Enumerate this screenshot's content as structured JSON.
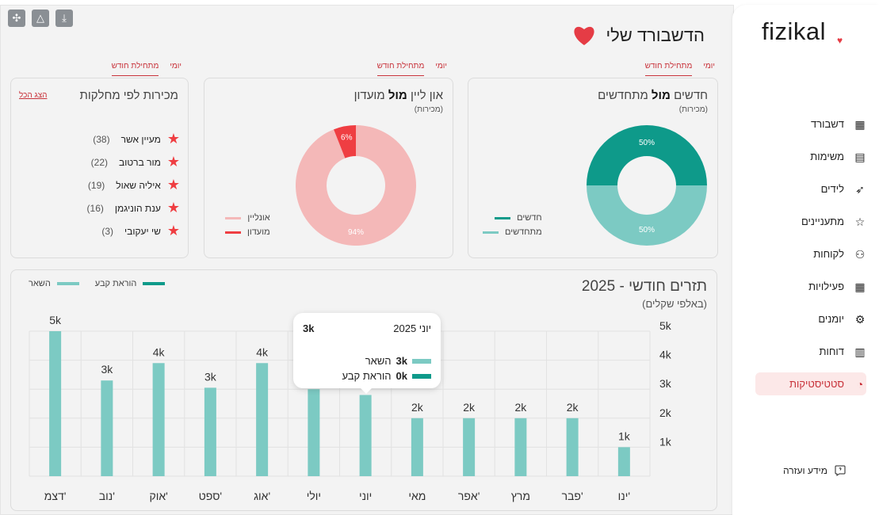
{
  "app": {
    "logo": "fizikal",
    "page_title": "הדשבורד שלי"
  },
  "sidebar": {
    "items": [
      {
        "label": "דשבורד",
        "icon": "grid-icon"
      },
      {
        "label": "משימות",
        "icon": "document-icon"
      },
      {
        "label": "לידים",
        "icon": "rocket-icon"
      },
      {
        "label": "מתעניינים",
        "icon": "star-icon"
      },
      {
        "label": "לקוחות",
        "icon": "users-icon"
      },
      {
        "label": "פעילויות",
        "icon": "calendar-icon"
      },
      {
        "label": "יומנים",
        "icon": "gear-icon"
      },
      {
        "label": "דוחות",
        "icon": "report-icon"
      },
      {
        "label": "סטטיסטיקות",
        "icon": "pie-chart-icon",
        "active": true
      }
    ],
    "help": "מידע ועזרה"
  },
  "tabs": {
    "daily": "יומי",
    "month_start": "מתחילת חודש"
  },
  "new_vs_renew": {
    "title_a": "חדשים",
    "title_mid": "מול",
    "title_b": "מתחדשים",
    "subtitle": "(מכירות)",
    "chart_data": {
      "type": "pie",
      "donut": true,
      "slices": [
        {
          "name": "חדשים",
          "value": 50,
          "label": "50%",
          "color": "#0e9a8a"
        },
        {
          "name": "מתחדשים",
          "value": 50,
          "label": "50%",
          "color": "#7ccac3"
        }
      ]
    }
  },
  "online_vs_club": {
    "title_a": "און ליין",
    "title_mid": "מול",
    "title_b": "מועדון",
    "subtitle": "(מכירות)",
    "chart_data": {
      "type": "pie",
      "donut": true,
      "slices": [
        {
          "name": "מועדון",
          "value": 6,
          "label": "6%",
          "color": "#ef3e42"
        },
        {
          "name": "אונליין",
          "value": 94,
          "label": "94%",
          "color": "#f4b8b8"
        }
      ]
    }
  },
  "departments": {
    "title": "מכירות לפי מחלקות",
    "show_all": "הצג הכל",
    "items": [
      {
        "name": "מעיין אשר",
        "count": "(38)"
      },
      {
        "name": "מור ברטוב",
        "count": "(22)"
      },
      {
        "name": "איליה שאול",
        "count": "(19)"
      },
      {
        "name": "ענת הוניגמן",
        "count": "(16)"
      },
      {
        "name": "שי יעקובי",
        "count": "(3)"
      }
    ]
  },
  "monthly": {
    "title": "תזרים חודשי - 2025",
    "subtitle": "(באלפי שקלים)",
    "legend": {
      "standing_order": "הוראת קבע",
      "rest": "השאר"
    },
    "tooltip": {
      "title": "יוני 2025",
      "total": "3k",
      "rest_value": "3k",
      "rest_label": "השאר",
      "standing_value": "0k",
      "standing_label": "הוראת קבע"
    },
    "chart_data": {
      "type": "bar",
      "categories": [
        "ינו'",
        "פבר'",
        "מרץ",
        "אפר'",
        "מאי",
        "יוני",
        "יולי",
        "אוג'",
        "ספט'",
        "אוק'",
        "נוב'",
        "דצמ'"
      ],
      "series": [
        {
          "name": "השאר",
          "color": "#7ccac3",
          "values": [
            1.0,
            2.0,
            2.0,
            2.0,
            2.0,
            2.8,
            3.0,
            3.9,
            3.05,
            3.9,
            3.3,
            5.0
          ]
        },
        {
          "name": "הוראת קבע",
          "color": "#0e9a8a",
          "values": [
            0,
            0,
            0,
            0,
            0,
            0,
            0,
            0,
            0,
            0,
            0,
            0
          ]
        }
      ],
      "data_labels": [
        "1k",
        "2k",
        "2k",
        "2k",
        "2k",
        "",
        "",
        "4k",
        "3k",
        "4k",
        "3k",
        "5k"
      ],
      "yticks": [
        "1k",
        "2k",
        "3k",
        "4k",
        "5k"
      ],
      "ylim": [
        0,
        5
      ],
      "grid": true,
      "x_direction": "right-to-left",
      "y_axis": "right",
      "legend": "top-left"
    }
  }
}
